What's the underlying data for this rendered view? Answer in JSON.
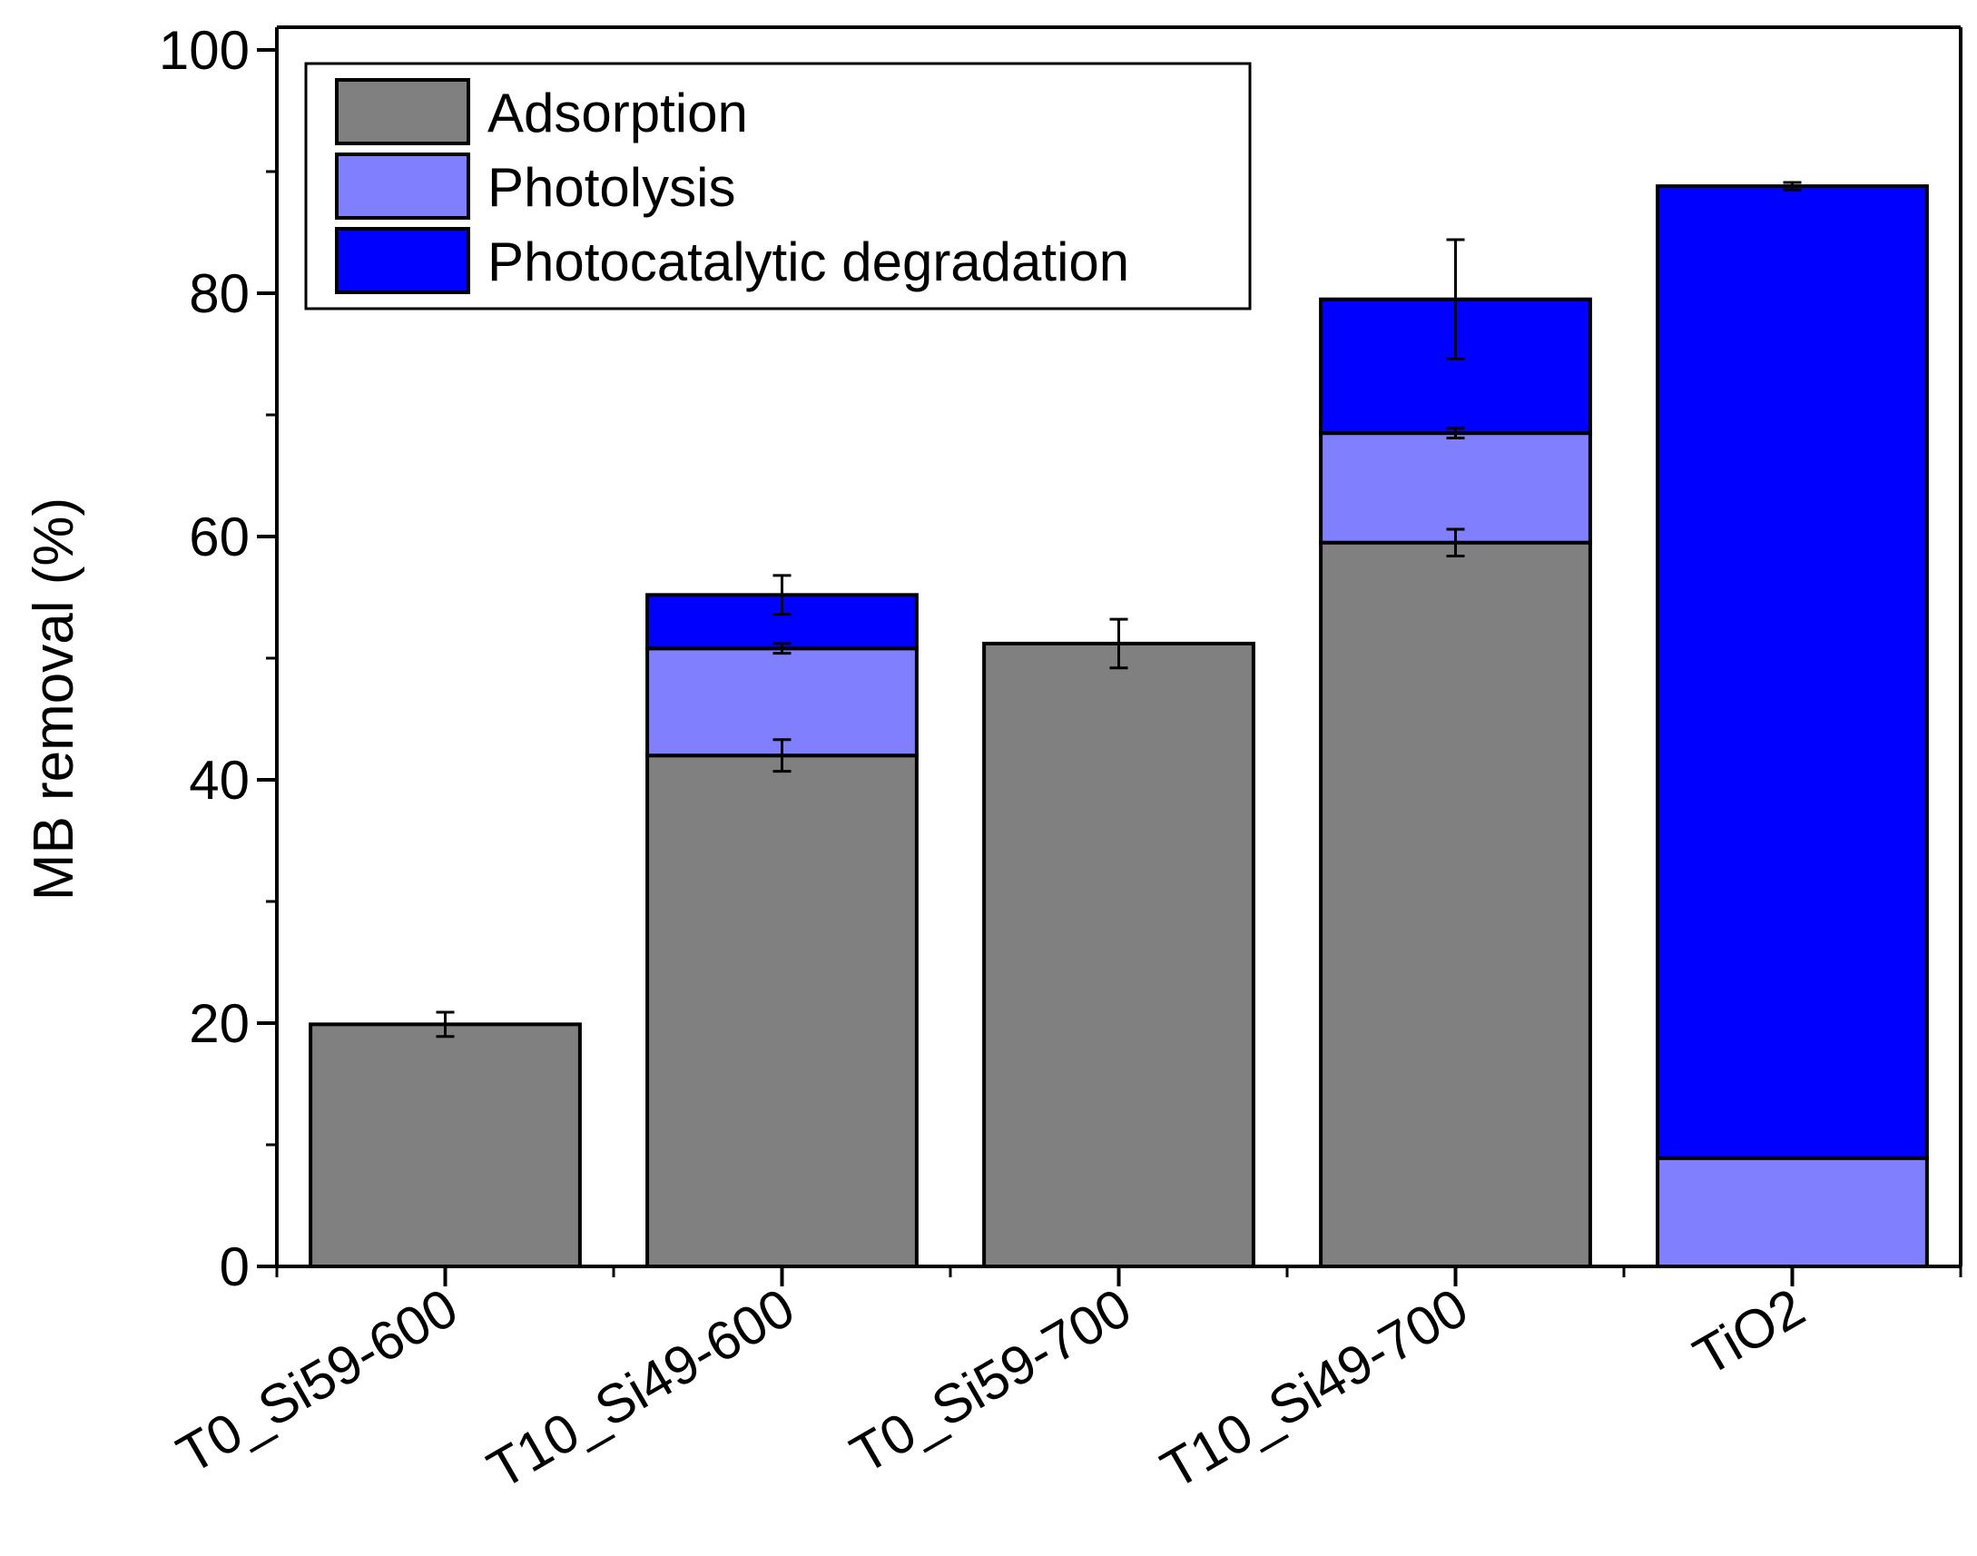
{
  "chart_data": {
    "type": "bar",
    "stacked": true,
    "categories": [
      "T0_Si59-600",
      "T10_Si49-600",
      "T0_Si59-700",
      "T10_Si49-700",
      "TiO2"
    ],
    "series": [
      {
        "name": "Adsorption",
        "color": "#808080",
        "values": [
          19.9,
          42.0,
          51.2,
          59.5,
          0
        ],
        "errors": [
          1.0,
          1.3,
          2.0,
          1.1,
          0
        ]
      },
      {
        "name": "Photolysis",
        "color": "#8080ff",
        "values": [
          0,
          8.8,
          0,
          9.0,
          8.9
        ],
        "errors": [
          0,
          0.4,
          0,
          0.4,
          0
        ]
      },
      {
        "name": "Photocatalytic degradation",
        "color": "#0000ff",
        "values": [
          0,
          4.4,
          0,
          11.0,
          79.9
        ],
        "errors": [
          0,
          1.6,
          0,
          4.9,
          0.3
        ]
      }
    ],
    "title": "",
    "xlabel": "",
    "ylabel": "MB removal (%)",
    "ylim": [
      0,
      100
    ],
    "yticks": [
      0,
      20,
      40,
      60,
      80,
      100
    ],
    "ytick_labels": [
      "0",
      "20",
      "40",
      "60",
      "80",
      "100"
    ],
    "y_minor_step": 10,
    "legend_position": "top-left",
    "grid": false
  }
}
